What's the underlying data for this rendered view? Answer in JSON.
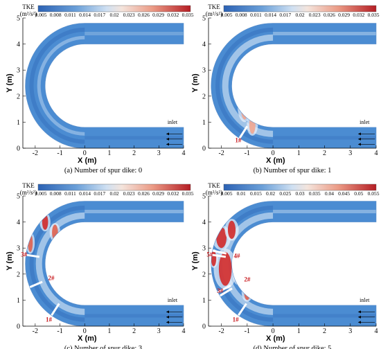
{
  "colorbar_title": "TKE",
  "colorbar_unit": "(m²/s²)",
  "colors": {
    "channel_base": "#4b8cd2",
    "channel_light": "#b6d2ee",
    "channel_dark": "#2c62b4",
    "high_tke": "#d22a2a",
    "mid_tke": "#f0a590",
    "label_red": "#c8191e"
  },
  "inlet_label": "inlet",
  "chart_data": [
    {
      "type": "heatmap",
      "caption": "(a) Number of spur dike: 0",
      "xlabel": "X (m)",
      "ylabel": "Y (m)",
      "xlim": [
        -2.5,
        4
      ],
      "ylim": [
        0,
        5
      ],
      "x_ticks": [
        "-2",
        "-1",
        "0",
        "1",
        "2",
        "3",
        "4"
      ],
      "y_ticks": [
        "0",
        "1",
        "2",
        "3",
        "4",
        "5"
      ],
      "colorbar_ticks": [
        "0.005",
        "0.008",
        "0.011",
        "0.014",
        "0.017",
        "0.02",
        "0.023",
        "0.026",
        "0.029",
        "0.032",
        "0.035"
      ],
      "dike_labels": [],
      "hotspots": []
    },
    {
      "type": "heatmap",
      "caption": "(b) Number of spur dike: 1",
      "xlabel": "X (m)",
      "ylabel": "Y (m)",
      "xlim": [
        -2.5,
        4
      ],
      "ylim": [
        0,
        5
      ],
      "x_ticks": [
        "-2",
        "-1",
        "0",
        "1",
        "2",
        "3",
        "4"
      ],
      "y_ticks": [
        "0",
        "1",
        "2",
        "3",
        "4",
        "5"
      ],
      "colorbar_ticks": [
        "0.005",
        "0.008",
        "0.011",
        "0.014",
        "0.017",
        "0.02",
        "0.023",
        "0.026",
        "0.029",
        "0.032",
        "0.035"
      ],
      "dike_labels": [
        {
          "text": "1#",
          "x": -1.35,
          "y": 0.3
        }
      ],
      "hotspots": [
        {
          "x": -1.1,
          "y": 1.6,
          "rx": 0.15,
          "ry": 0.5,
          "level": 0.45
        },
        {
          "x": -0.8,
          "y": 0.9,
          "rx": 0.12,
          "ry": 0.35,
          "level": 0.35
        }
      ]
    },
    {
      "type": "heatmap",
      "caption": "(c) Number of spur dike: 3",
      "xlabel": "X (m)",
      "ylabel": "Y (m)",
      "xlim": [
        -2.5,
        4
      ],
      "ylim": [
        0,
        5
      ],
      "x_ticks": [
        "-2",
        "-1",
        "0",
        "1",
        "2",
        "3",
        "4"
      ],
      "y_ticks": [
        "0",
        "1",
        "2",
        "3",
        "4",
        "5"
      ],
      "colorbar_ticks": [
        "0.005",
        "0.008",
        "0.011",
        "0.014",
        "0.017",
        "0.02",
        "0.023",
        "0.026",
        "0.029",
        "0.032",
        "0.035"
      ],
      "dike_labels": [
        {
          "text": "3#",
          "x": -2.45,
          "y": 2.75
        },
        {
          "text": "2#",
          "x": -1.35,
          "y": 1.85
        },
        {
          "text": "1#",
          "x": -1.45,
          "y": 0.25
        }
      ],
      "hotspots": [
        {
          "x": -1.6,
          "y": 4.0,
          "rx": 0.12,
          "ry": 0.3,
          "level": 0.85
        },
        {
          "x": -1.2,
          "y": 3.6,
          "rx": 0.12,
          "ry": 0.3,
          "level": 0.7
        },
        {
          "x": -2.2,
          "y": 3.2,
          "rx": 0.1,
          "ry": 0.35,
          "level": 0.6
        },
        {
          "x": -1.3,
          "y": 2.6,
          "rx": 0.12,
          "ry": 0.3,
          "level": 0.55
        }
      ]
    },
    {
      "type": "heatmap",
      "caption": "(d) Number of spur dike: 5",
      "xlabel": "X (m)",
      "ylabel": "Y (m)",
      "xlim": [
        -2.5,
        4
      ],
      "ylim": [
        0,
        5
      ],
      "x_ticks": [
        "-2",
        "-1",
        "0",
        "1",
        "2",
        "3",
        "4"
      ],
      "y_ticks": [
        "0",
        "1",
        "2",
        "3",
        "4",
        "5"
      ],
      "colorbar_ticks": [
        "0.005",
        "0.01",
        "0.015",
        "0.02",
        "0.025",
        "0.03",
        "0.035",
        "0.04",
        "0.045",
        "0.05",
        "0.055"
      ],
      "dike_labels": [
        {
          "text": "5#",
          "x": -2.45,
          "y": 2.75
        },
        {
          "text": "4#",
          "x": -1.4,
          "y": 2.7
        },
        {
          "text": "2#",
          "x": -1.0,
          "y": 1.8
        },
        {
          "text": "3#",
          "x": -2.05,
          "y": 1.35
        },
        {
          "text": "1#",
          "x": -1.45,
          "y": 0.25
        }
      ],
      "hotspots": [
        {
          "x": -2.0,
          "y": 3.4,
          "rx": 0.2,
          "ry": 0.4,
          "level": 1.0
        },
        {
          "x": -1.6,
          "y": 3.7,
          "rx": 0.15,
          "ry": 0.35,
          "level": 0.9
        },
        {
          "x": -1.85,
          "y": 2.2,
          "rx": 0.25,
          "ry": 0.65,
          "level": 1.0
        },
        {
          "x": -1.35,
          "y": 2.0,
          "rx": 0.12,
          "ry": 0.35,
          "level": 0.85
        },
        {
          "x": -1.0,
          "y": 1.3,
          "rx": 0.12,
          "ry": 0.3,
          "level": 0.7
        },
        {
          "x": -2.3,
          "y": 2.6,
          "rx": 0.1,
          "ry": 0.3,
          "level": 0.8
        }
      ]
    }
  ]
}
